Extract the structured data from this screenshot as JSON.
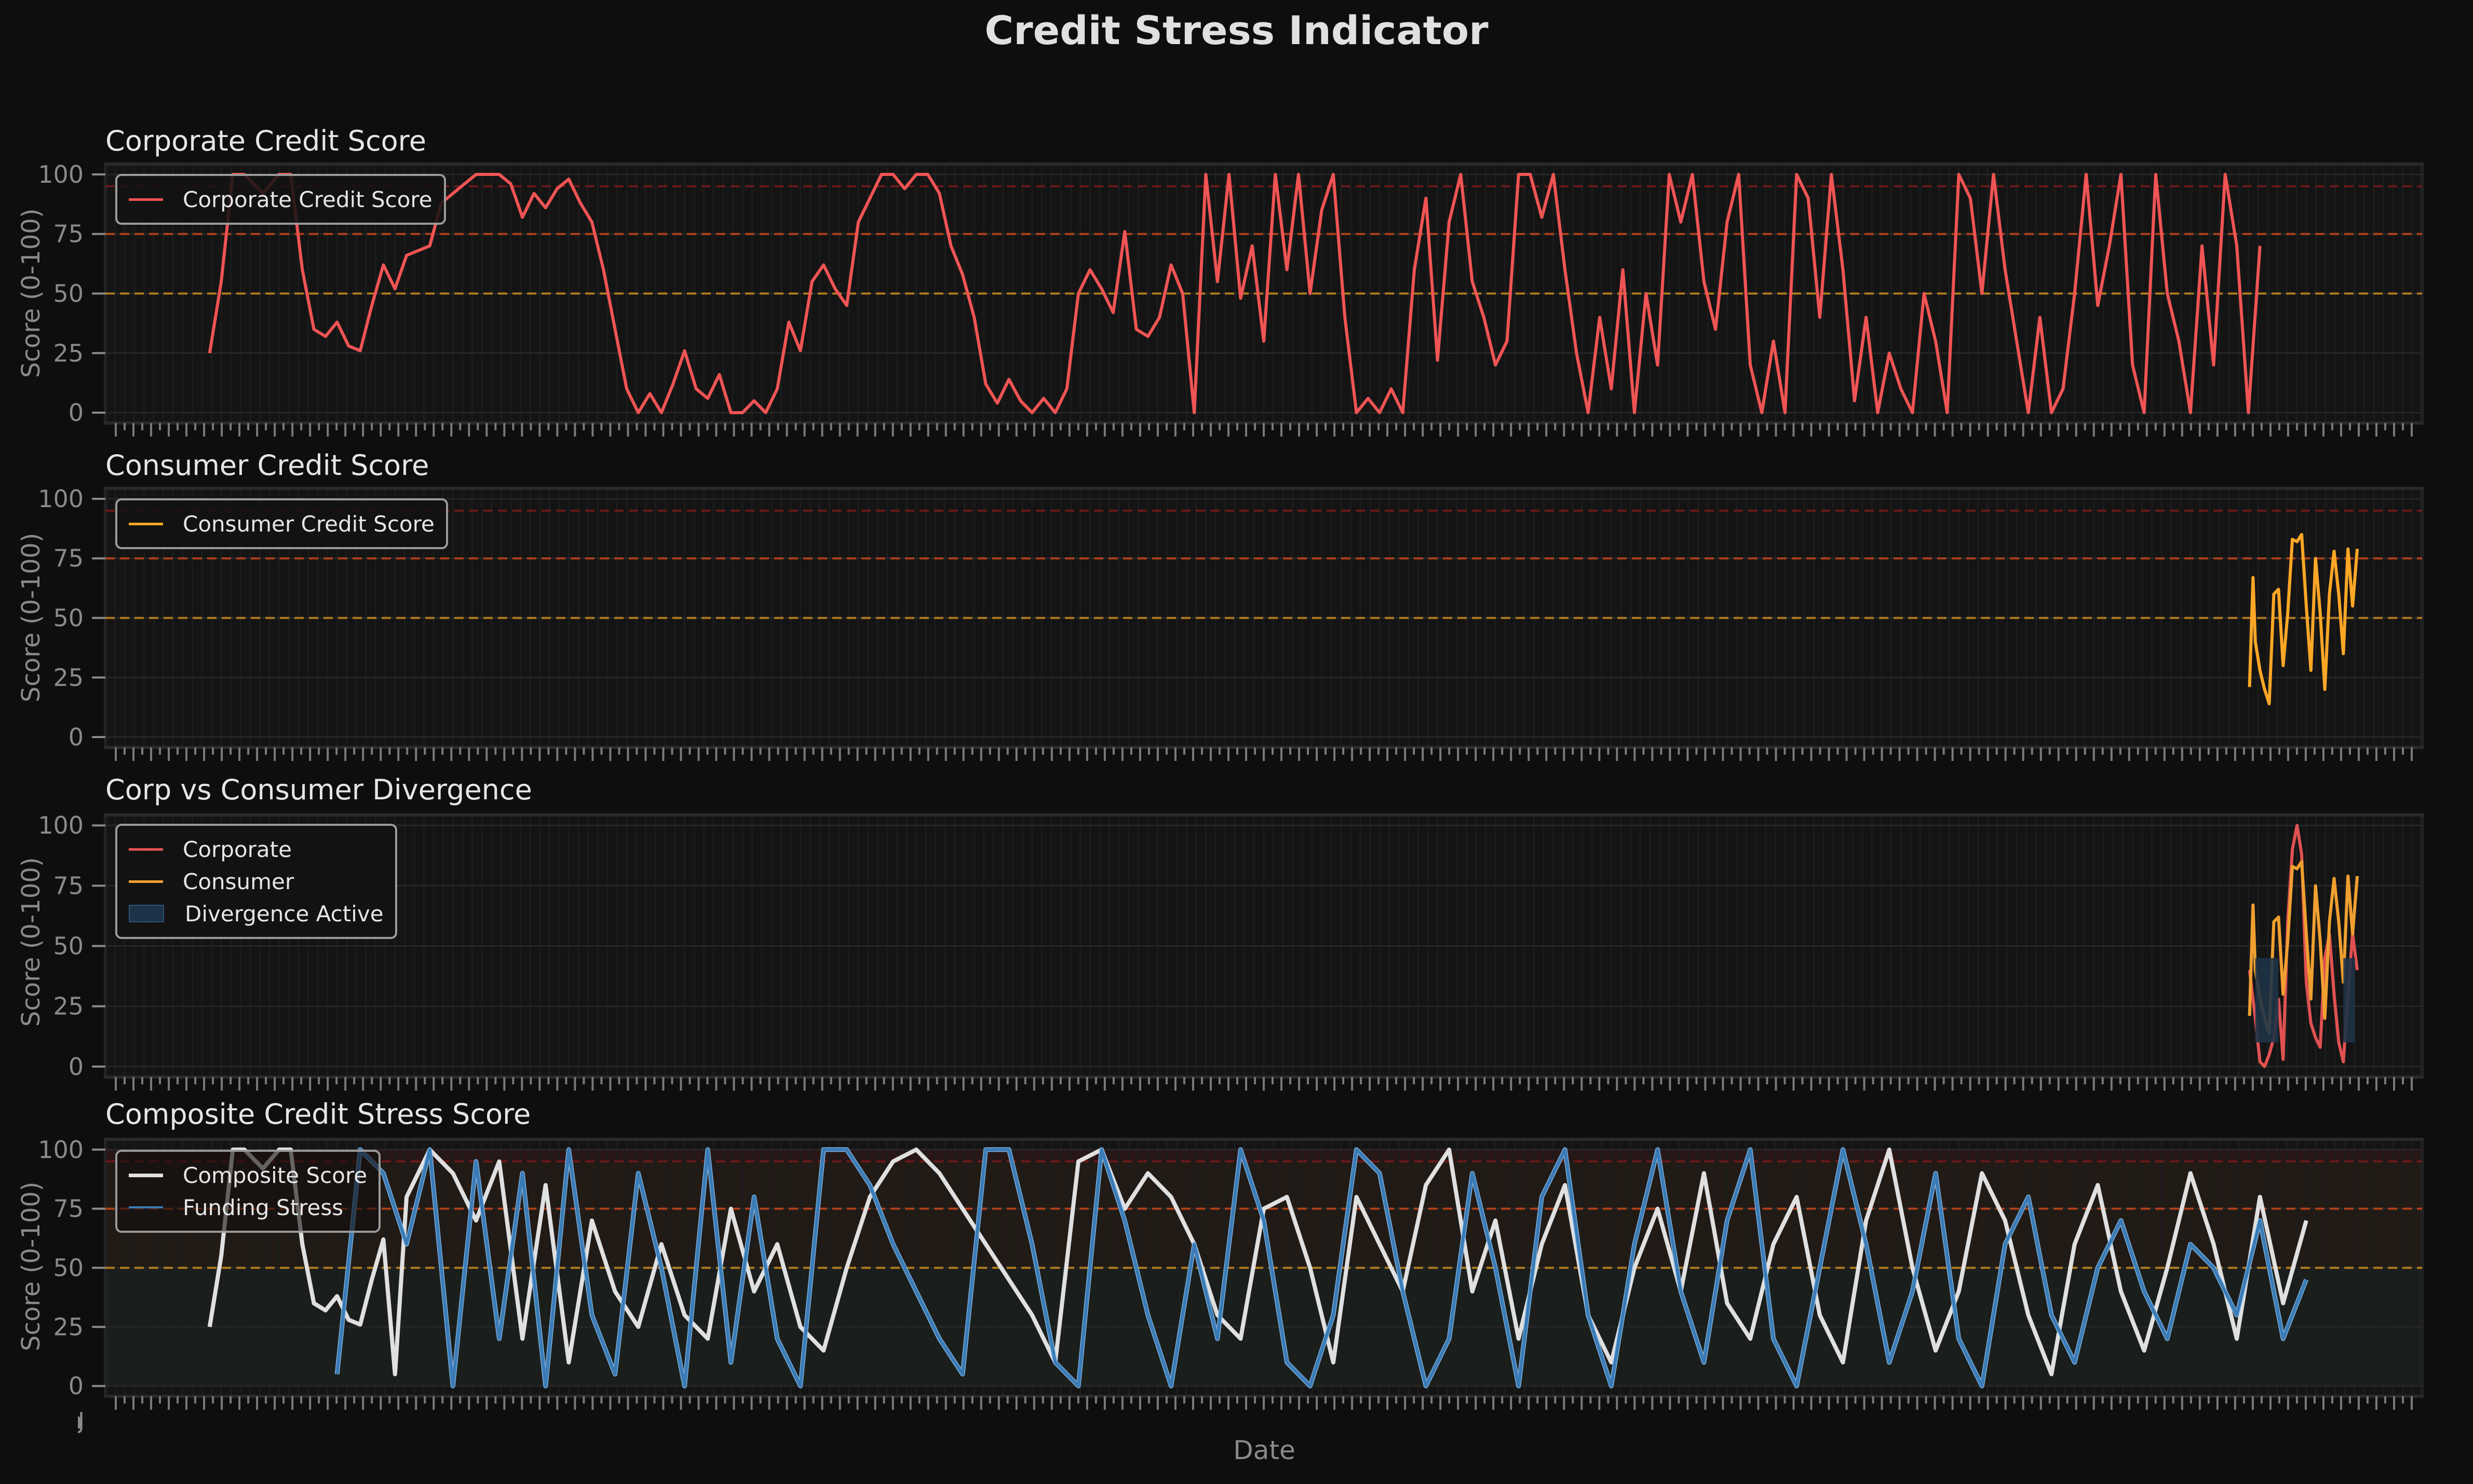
{
  "figure": {
    "title": "Credit Stress Indicator",
    "background": "#0e0e0e",
    "x_axis_label": "Date",
    "x_tick_labels_overlapping": "Jan ... (dense overlapping date labels, illegible)"
  },
  "colors": {
    "corporate": "#f05454",
    "consumer": "#ffa726",
    "composite": "#e0e0e0",
    "funding_stress": "#3b7bb5",
    "funding_stress_light": "#85bdee",
    "divergence_fill": "#1e3347",
    "threshold_50": "#c98a1e",
    "threshold_75": "#c8461a",
    "threshold_95": "#7a1a1a",
    "band_low": "#1a201c",
    "band_mid": "#221a15",
    "band_high": "#2a1616"
  },
  "chart_data": [
    {
      "type": "line",
      "title": "Corporate Credit Score",
      "xlabel": "",
      "ylabel": "Score (0-100)",
      "ylim": [
        0,
        100
      ],
      "yticks": [
        0,
        25,
        50,
        75,
        100
      ],
      "grid": true,
      "legend": [
        "Corporate Credit Score"
      ],
      "legend_position": "upper left",
      "threshold_lines": [
        50,
        75,
        95
      ],
      "series": [
        {
          "name": "Corporate Credit Score",
          "color": "#f05454",
          "x_frac": [
            0.045,
            0.05,
            0.055,
            0.06,
            0.068,
            0.075,
            0.08,
            0.085,
            0.09,
            0.095,
            0.1,
            0.105,
            0.11,
            0.115,
            0.12,
            0.125,
            0.13,
            0.135,
            0.14,
            0.145,
            0.15,
            0.155,
            0.16,
            0.165,
            0.17,
            0.175,
            0.18,
            0.185,
            0.19,
            0.195,
            0.2,
            0.205,
            0.21,
            0.215,
            0.22,
            0.225,
            0.23,
            0.235,
            0.24,
            0.245,
            0.25,
            0.255,
            0.26,
            0.265,
            0.27,
            0.275,
            0.28,
            0.285,
            0.29,
            0.295,
            0.3,
            0.305,
            0.31,
            0.315,
            0.32,
            0.325,
            0.33,
            0.335,
            0.34,
            0.345,
            0.35,
            0.355,
            0.36,
            0.365,
            0.37,
            0.375,
            0.38,
            0.385,
            0.39,
            0.395,
            0.4,
            0.405,
            0.41,
            0.415,
            0.42,
            0.425,
            0.43,
            0.435,
            0.44,
            0.445,
            0.45,
            0.455,
            0.46,
            0.465,
            0.47,
            0.475,
            0.48,
            0.485,
            0.49,
            0.495,
            0.5,
            0.505,
            0.51,
            0.515,
            0.52,
            0.525,
            0.53,
            0.535,
            0.54,
            0.545,
            0.55,
            0.555,
            0.56,
            0.565,
            0.57,
            0.575,
            0.58,
            0.585,
            0.59,
            0.595,
            0.6,
            0.605,
            0.61,
            0.615,
            0.62,
            0.625,
            0.63,
            0.635,
            0.64,
            0.645,
            0.65,
            0.655,
            0.66,
            0.665,
            0.67,
            0.675,
            0.68,
            0.685,
            0.69,
            0.695,
            0.7,
            0.705,
            0.71,
            0.715,
            0.72,
            0.725,
            0.73,
            0.735,
            0.74,
            0.745,
            0.75,
            0.755,
            0.76,
            0.765,
            0.77,
            0.775,
            0.78,
            0.785,
            0.79,
            0.795,
            0.8,
            0.805,
            0.81,
            0.815,
            0.82,
            0.825,
            0.83,
            0.835,
            0.84,
            0.845,
            0.85,
            0.855,
            0.86,
            0.865,
            0.87,
            0.875,
            0.88,
            0.885,
            0.89,
            0.895,
            0.9,
            0.905,
            0.91,
            0.915,
            0.92,
            0.925,
            0.93,
            0.935,
            0.94,
            0.945,
            0.95
          ],
          "values": [
            25,
            55,
            100,
            100,
            92,
            100,
            100,
            60,
            35,
            32,
            38,
            28,
            26,
            45,
            62,
            52,
            66,
            68,
            70,
            88,
            92,
            96,
            100,
            100,
            100,
            96,
            82,
            92,
            86,
            94,
            98,
            88,
            80,
            60,
            35,
            10,
            0,
            8,
            0,
            12,
            26,
            10,
            6,
            16,
            0,
            0,
            5,
            0,
            10,
            38,
            26,
            55,
            62,
            52,
            45,
            80,
            90,
            100,
            100,
            94,
            100,
            100,
            92,
            70,
            58,
            40,
            12,
            4,
            14,
            5,
            0,
            6,
            0,
            10,
            50,
            60,
            52,
            42,
            76,
            35,
            32,
            40,
            62,
            50,
            0,
            100,
            55,
            100,
            48,
            70,
            30,
            100,
            60,
            100,
            50,
            85,
            100,
            40,
            0,
            6,
            0,
            10,
            0,
            60,
            90,
            22,
            80,
            100,
            55,
            40,
            20,
            30,
            100,
            100,
            82,
            100,
            60,
            25,
            0,
            40,
            10,
            60,
            0,
            50,
            20,
            100,
            80,
            100,
            55,
            35,
            80,
            100,
            20,
            0,
            30,
            0,
            100,
            90,
            40,
            100,
            60,
            5,
            40,
            0,
            25,
            10,
            0,
            50,
            30,
            0,
            100,
            90,
            50,
            100,
            60,
            30,
            0,
            40,
            0,
            10,
            50,
            100,
            45,
            70,
            100,
            20,
            0,
            100,
            50,
            30,
            0,
            70,
            20,
            100,
            70,
            0,
            70
          ]
        }
      ]
    },
    {
      "type": "line",
      "title": "Consumer Credit Score",
      "xlabel": "",
      "ylabel": "Score (0-100)",
      "ylim": [
        0,
        100
      ],
      "yticks": [
        0,
        25,
        50,
        75,
        100
      ],
      "grid": true,
      "legend": [
        "Consumer Credit Score"
      ],
      "legend_position": "upper left",
      "threshold_lines": [
        50,
        75,
        95
      ],
      "series": [
        {
          "name": "Consumer Credit Score",
          "color": "#ffa726",
          "x_frac": [
            0.9255,
            0.927,
            0.928,
            0.93,
            0.932,
            0.934,
            0.936,
            0.938,
            0.94,
            0.942,
            0.944,
            0.946,
            0.948,
            0.95,
            0.952,
            0.954,
            0.956,
            0.958,
            0.96,
            0.962,
            0.964,
            0.966,
            0.968,
            0.97,
            0.972
          ],
          "values": [
            21,
            67,
            40,
            28,
            20,
            14,
            60,
            62,
            30,
            52,
            83,
            82,
            85,
            55,
            28,
            75,
            52,
            20,
            60,
            78,
            60,
            35,
            79,
            55,
            79
          ]
        }
      ]
    },
    {
      "type": "line",
      "title": "Corp vs Consumer Divergence",
      "xlabel": "",
      "ylabel": "Score (0-100)",
      "ylim": [
        0,
        100
      ],
      "yticks": [
        0,
        25,
        50,
        75,
        100
      ],
      "grid": true,
      "legend": [
        "Corporate",
        "Consumer",
        "Divergence Active"
      ],
      "legend_position": "upper left",
      "series": [
        {
          "name": "Corporate",
          "color": "#e05252",
          "x_frac": [
            0.9255,
            0.928,
            0.93,
            0.932,
            0.934,
            0.936,
            0.938,
            0.94,
            0.942,
            0.944,
            0.946,
            0.948,
            0.95,
            0.952,
            0.954,
            0.956,
            0.958,
            0.96,
            0.962,
            0.964,
            0.966,
            0.968,
            0.97,
            0.972
          ],
          "values": [
            40,
            20,
            2,
            0,
            5,
            12,
            28,
            3,
            60,
            90,
            100,
            88,
            35,
            18,
            12,
            8,
            45,
            55,
            30,
            10,
            2,
            30,
            55,
            40
          ]
        },
        {
          "name": "Consumer",
          "color": "#f0a030",
          "x_frac": [
            0.9255,
            0.927,
            0.928,
            0.93,
            0.932,
            0.934,
            0.936,
            0.938,
            0.94,
            0.942,
            0.944,
            0.946,
            0.948,
            0.95,
            0.952,
            0.954,
            0.956,
            0.958,
            0.96,
            0.962,
            0.964,
            0.966,
            0.968,
            0.97,
            0.972
          ],
          "values": [
            21,
            67,
            40,
            28,
            20,
            14,
            60,
            62,
            30,
            52,
            83,
            82,
            85,
            55,
            28,
            75,
            52,
            20,
            60,
            78,
            60,
            35,
            79,
            55,
            79
          ]
        },
        {
          "name": "Divergence Active",
          "type": "fill_between",
          "color": "#1e3347",
          "ranges_x_frac": [
            [
              0.928,
              0.938
            ],
            [
              0.966,
              0.971
            ]
          ]
        }
      ]
    },
    {
      "type": "line",
      "title": "Composite Credit Stress Score",
      "xlabel": "Date",
      "ylabel": "Score (0-100)",
      "ylim": [
        0,
        100
      ],
      "yticks": [
        0,
        25,
        50,
        75,
        100
      ],
      "grid": true,
      "legend": [
        "Composite Score",
        "Funding Stress"
      ],
      "legend_position": "upper left",
      "threshold_lines": [
        50,
        75,
        95
      ],
      "background_bands": [
        {
          "from": 0,
          "to": 50,
          "color": "#1a201c"
        },
        {
          "from": 50,
          "to": 75,
          "color": "#221a15"
        },
        {
          "from": 75,
          "to": 95,
          "color": "#221a15"
        },
        {
          "from": 95,
          "to": 100,
          "color": "#2a1616"
        }
      ],
      "series": [
        {
          "name": "Composite Score",
          "color": "#e0e0e0",
          "x_frac": [
            0.045,
            0.05,
            0.055,
            0.06,
            0.068,
            0.075,
            0.08,
            0.085,
            0.09,
            0.095,
            0.1,
            0.105,
            0.11,
            0.115,
            0.12,
            0.125,
            0.13,
            0.14,
            0.15,
            0.16,
            0.17,
            0.18,
            0.19,
            0.2,
            0.21,
            0.22,
            0.23,
            0.24,
            0.25,
            0.26,
            0.27,
            0.28,
            0.29,
            0.3,
            0.31,
            0.32,
            0.33,
            0.34,
            0.35,
            0.36,
            0.37,
            0.38,
            0.39,
            0.4,
            0.41,
            0.42,
            0.43,
            0.44,
            0.45,
            0.46,
            0.47,
            0.48,
            0.49,
            0.5,
            0.51,
            0.52,
            0.53,
            0.54,
            0.55,
            0.56,
            0.57,
            0.58,
            0.59,
            0.6,
            0.61,
            0.62,
            0.63,
            0.64,
            0.65,
            0.66,
            0.67,
            0.68,
            0.69,
            0.7,
            0.71,
            0.72,
            0.73,
            0.74,
            0.75,
            0.76,
            0.77,
            0.78,
            0.79,
            0.8,
            0.81,
            0.82,
            0.83,
            0.84,
            0.85,
            0.86,
            0.87,
            0.88,
            0.89,
            0.9,
            0.91,
            0.92,
            0.93,
            0.94,
            0.95
          ],
          "values": [
            25,
            55,
            100,
            100,
            92,
            100,
            100,
            60,
            35,
            32,
            38,
            28,
            26,
            45,
            62,
            5,
            80,
            100,
            90,
            70,
            95,
            20,
            85,
            10,
            70,
            40,
            25,
            60,
            30,
            20,
            75,
            40,
            60,
            25,
            15,
            50,
            80,
            95,
            100,
            90,
            75,
            60,
            45,
            30,
            10,
            95,
            100,
            75,
            90,
            80,
            60,
            30,
            20,
            75,
            80,
            50,
            10,
            80,
            60,
            40,
            85,
            100,
            40,
            70,
            20,
            60,
            85,
            30,
            10,
            50,
            75,
            40,
            90,
            35,
            20,
            60,
            80,
            30,
            10,
            70,
            100,
            50,
            15,
            40,
            90,
            70,
            30,
            5,
            60,
            85,
            40,
            15,
            50,
            90,
            60,
            20,
            80,
            35,
            70
          ]
        },
        {
          "name": "Funding Stress",
          "color": "#3b7bb5",
          "x_frac": [
            0.1,
            0.11,
            0.12,
            0.13,
            0.14,
            0.15,
            0.16,
            0.17,
            0.18,
            0.19,
            0.2,
            0.21,
            0.22,
            0.23,
            0.24,
            0.25,
            0.26,
            0.27,
            0.28,
            0.29,
            0.3,
            0.31,
            0.32,
            0.33,
            0.34,
            0.35,
            0.36,
            0.37,
            0.38,
            0.39,
            0.4,
            0.41,
            0.42,
            0.43,
            0.44,
            0.45,
            0.46,
            0.47,
            0.48,
            0.49,
            0.5,
            0.51,
            0.52,
            0.53,
            0.54,
            0.55,
            0.56,
            0.57,
            0.58,
            0.59,
            0.6,
            0.61,
            0.62,
            0.63,
            0.64,
            0.65,
            0.66,
            0.67,
            0.68,
            0.69,
            0.7,
            0.71,
            0.72,
            0.73,
            0.74,
            0.75,
            0.76,
            0.77,
            0.78,
            0.79,
            0.8,
            0.81,
            0.82,
            0.83,
            0.84,
            0.85,
            0.86,
            0.87,
            0.88,
            0.89,
            0.9,
            0.91,
            0.92,
            0.93,
            0.94,
            0.95
          ],
          "values": [
            5,
            100,
            90,
            60,
            100,
            0,
            95,
            20,
            90,
            0,
            100,
            30,
            5,
            90,
            50,
            0,
            100,
            10,
            80,
            20,
            0,
            100,
            100,
            85,
            60,
            40,
            20,
            5,
            100,
            100,
            60,
            10,
            0,
            100,
            70,
            30,
            0,
            60,
            20,
            100,
            70,
            10,
            0,
            30,
            100,
            90,
            40,
            0,
            20,
            90,
            50,
            0,
            80,
            100,
            30,
            0,
            60,
            100,
            40,
            10,
            70,
            100,
            20,
            0,
            50,
            100,
            60,
            10,
            40,
            90,
            20,
            0,
            60,
            80,
            30,
            10,
            50,
            70,
            40,
            20,
            60,
            50,
            30,
            70,
            20,
            45
          ]
        }
      ]
    }
  ]
}
